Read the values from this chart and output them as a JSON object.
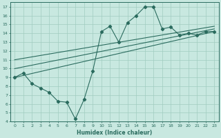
{
  "xlabel": "Humidex (Indice chaleur)",
  "bg_color": "#c8e8e0",
  "line_color": "#2a6b5e",
  "grid_color": "#a0ccc0",
  "xlim": [
    -0.5,
    23.5
  ],
  "ylim": [
    4,
    17.5
  ],
  "xticks": [
    0,
    1,
    2,
    3,
    4,
    5,
    6,
    7,
    8,
    9,
    10,
    11,
    12,
    13,
    14,
    15,
    16,
    17,
    18,
    19,
    20,
    21,
    22,
    23
  ],
  "yticks": [
    4,
    5,
    6,
    7,
    8,
    9,
    10,
    11,
    12,
    13,
    14,
    15,
    16,
    17
  ],
  "curve_x": [
    0,
    1,
    2,
    3,
    4,
    5,
    6,
    7,
    8,
    9,
    10,
    11,
    12,
    13,
    14,
    15,
    16,
    17,
    18,
    19,
    20,
    21,
    22,
    23
  ],
  "curve_y": [
    9,
    9.5,
    8.3,
    7.8,
    7.3,
    6.3,
    6.2,
    4.3,
    6.5,
    9.7,
    14.2,
    14.8,
    13.0,
    15.2,
    16.0,
    17.0,
    17.0,
    14.5,
    14.7,
    13.8,
    14.0,
    13.8,
    14.2,
    14.2
  ],
  "line1_x": [
    0,
    23
  ],
  "line1_y": [
    9.0,
    14.2
  ],
  "line2_x": [
    0,
    23
  ],
  "line2_y": [
    10.0,
    14.5
  ],
  "line3_x": [
    0,
    23
  ],
  "line3_y": [
    11.0,
    14.8
  ]
}
